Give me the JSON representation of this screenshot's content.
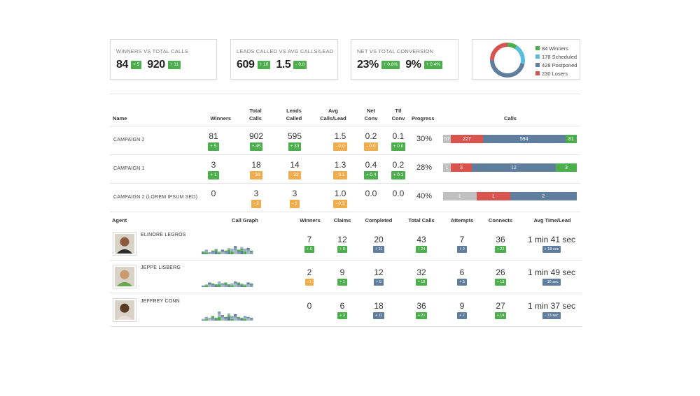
{
  "cards": {
    "winners": {
      "title": "WINNERS VS TOTAL CALLS",
      "v1": "84",
      "d1": "+ 5",
      "v2": "920",
      "d2": "+ 11"
    },
    "leads": {
      "title": "LEADS CALLED VS AVG CALLS/LEAD",
      "v1": "609",
      "d1": "+ 10",
      "v2": "1.5",
      "d2": "- 0.0"
    },
    "net": {
      "title": "NET VS TOTAL CONVERSION",
      "v1": "23%",
      "d1": "+ 0.8%",
      "v2": "9%",
      "d2": "+ 0.4%"
    },
    "donut": {
      "legend": [
        "84 Winners",
        "178 Scheduled",
        "428 Postponed",
        "230 Losers"
      ],
      "values": [
        84,
        178,
        428,
        230
      ],
      "colors": [
        "#4cae4c",
        "#5bc0de",
        "#5f7d9c",
        "#d9534f"
      ]
    }
  },
  "campaign_headers": {
    "name": "Name",
    "winners": "Winners",
    "total_calls": "Total Calls",
    "leads_called": "Leads Called",
    "avg_calls_lead": "Avg Calls/Lead",
    "net_conv": "Net Conv",
    "ttl_conv": "Ttl Conv",
    "progress": "Progress",
    "calls": "Calls"
  },
  "campaigns": [
    {
      "name": "CAMPAIGN 2",
      "winners": "81",
      "winners_d": "+ 5",
      "total": "902",
      "total_d": "+ 45",
      "leads": "595",
      "leads_d": "+ 33",
      "avg": "1.5",
      "avg_d": "- 0.0",
      "net": "0.2",
      "net_d": "- 0.0",
      "ttl": "0.1",
      "ttl_d": "+ 0.0",
      "progress": "30%",
      "calls": [
        {
          "label": "57",
          "value": 57
        },
        {
          "label": "227",
          "value": 227
        },
        {
          "label": "594",
          "value": 594
        },
        {
          "label": "81",
          "value": 81
        }
      ]
    },
    {
      "name": "CAMPAIGN 1",
      "winners": "3",
      "winners_d": "+ 1",
      "total": "18",
      "total_d": "- 33",
      "leads": "14",
      "leads_d": "- 22",
      "avg": "1.3",
      "avg_d": "- 0.1",
      "net": "0.4",
      "net_d": "+ 0.4",
      "ttl": "0.2",
      "ttl_d": "+ 0.1",
      "progress": "28%",
      "calls": [
        {
          "label": "1",
          "value": 1
        },
        {
          "label": "3",
          "value": 3
        },
        {
          "label": "12",
          "value": 12
        },
        {
          "label": "3",
          "value": 3
        }
      ]
    },
    {
      "name": "CAMPAIGN 2 (LOREM IPSUM SED)",
      "winners": "0",
      "winners_d": "",
      "total": "3",
      "total_d": "- 2",
      "leads": "3",
      "leads_d": "- 1",
      "avg": "1.0",
      "avg_d": "- 0.3",
      "net": "0.0",
      "net_d": "",
      "ttl": "0.0",
      "ttl_d": "",
      "progress": "40%",
      "calls": [
        {
          "label": "1",
          "value": 1
        },
        {
          "label": "1",
          "value": 1
        },
        {
          "label": "2",
          "value": 2
        }
      ]
    }
  ],
  "agent_headers": {
    "agent": "Agent",
    "call_graph": "Call Graph",
    "winners": "Winners",
    "claims": "Claims",
    "completed": "Completed",
    "total_calls": "Total Calls",
    "attempts": "Attempts",
    "connects": "Connects",
    "avg_time": "Avg Time/Lead"
  },
  "agents": [
    {
      "name": "ELINORE LEGROS",
      "winners": "7",
      "winners_d": "+ 5",
      "claims": "12",
      "claims_d": "+ 8",
      "completed": "20",
      "completed_d": "+ 11",
      "total": "43",
      "total_d": "+ 24",
      "attempts": "7",
      "attempts_d": "+ 2",
      "connects": "36",
      "connects_d": "+ 22",
      "avg_time": "1 min 41 sec",
      "avg_time_d": "+ 18 sec"
    },
    {
      "name": "JEPPE LISBERG",
      "winners": "2",
      "winners_d": "- 1",
      "claims": "9",
      "claims_d": "+ 1",
      "completed": "12",
      "completed_d": "+ 5",
      "total": "32",
      "total_d": "+ 18",
      "attempts": "6",
      "attempts_d": "+ 5",
      "connects": "26",
      "connects_d": "+ 13",
      "avg_time": "1 min 49 sec",
      "avg_time_d": "- 16 sec"
    },
    {
      "name": "JEFFREY CONN",
      "winners": "0",
      "winners_d": "",
      "claims": "6",
      "claims_d": "+ 3",
      "completed": "18",
      "completed_d": "+ 11",
      "total": "36",
      "total_d": "+ 21",
      "attempts": "9",
      "attempts_d": "+ 7",
      "connects": "27",
      "connects_d": "+ 14",
      "avg_time": "1 min 37 sec",
      "avg_time_d": "- 13 sec"
    }
  ],
  "icons": {
    "avatar_1": "person-avatar-icon",
    "avatar_2": "person-avatar-icon",
    "avatar_3": "person-avatar-icon"
  }
}
